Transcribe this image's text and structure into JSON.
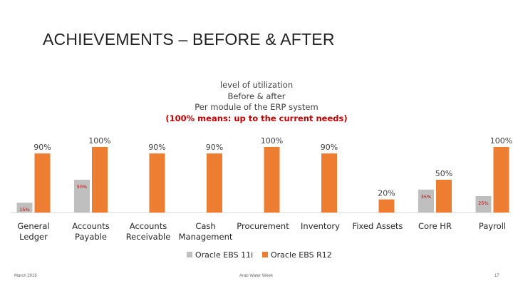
{
  "slide": {
    "title": "ACHIEVEMENTS – BEFORE & AFTER",
    "footer_left": "March 2018",
    "footer_center": "Arab Water Week",
    "page_number": "17"
  },
  "chart_data": {
    "type": "bar",
    "title_lines": [
      "level of utilization",
      "Before & after",
      "Per module of the ERP system"
    ],
    "note": "(100% means: up to the current needs)",
    "categories": [
      [
        "General",
        "Ledger"
      ],
      [
        "Accounts",
        "Payable"
      ],
      [
        "Accounts",
        "Receivable"
      ],
      [
        "Cash",
        "Management"
      ],
      [
        "Procurement"
      ],
      [
        "Inventory"
      ],
      [
        "Fixed Assets"
      ],
      [
        "Core HR"
      ],
      [
        "Payroll"
      ]
    ],
    "series": [
      {
        "name": "Oracle EBS 11i",
        "color": "#bfbfbf",
        "values": [
          15,
          50,
          null,
          null,
          null,
          null,
          null,
          35,
          25
        ],
        "labels": [
          "15%",
          "50%",
          "",
          "",
          "",
          "",
          "",
          "35%",
          "25%"
        ],
        "label_color": "#c00000"
      },
      {
        "name": "Oracle EBS R12",
        "color": "#ed7d31",
        "values": [
          90,
          100,
          90,
          90,
          100,
          90,
          20,
          50,
          100
        ],
        "labels": [
          "90%",
          "100%",
          "90%",
          "90%",
          "100%",
          "90%",
          "20%",
          "50%",
          "100%"
        ],
        "label_color": "#404040"
      }
    ],
    "ylim": [
      0,
      100
    ],
    "grid": false,
    "legend": "bottom"
  }
}
